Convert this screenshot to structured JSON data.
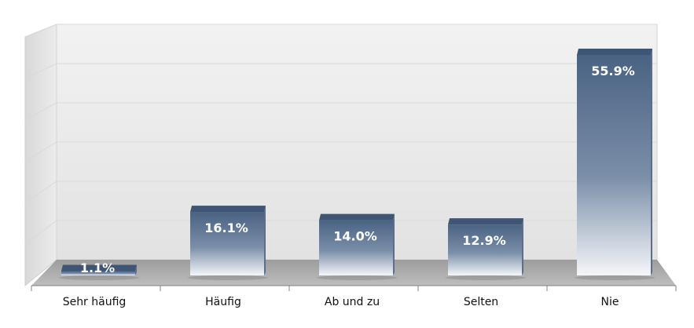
{
  "chart_data": {
    "type": "bar",
    "categories": [
      "Sehr häufig",
      "Häufig",
      "Ab und zu",
      "Selten",
      "Nie"
    ],
    "values": [
      1.1,
      16.1,
      14.0,
      12.9,
      55.9
    ],
    "data_labels": [
      "1.1%",
      "16.1%",
      "14.0%",
      "12.9%",
      "55.9%"
    ],
    "ylim": [
      0,
      60
    ],
    "grid": true,
    "three_d": true,
    "legend": "none",
    "colors": {
      "bar_top": "#4a6283",
      "bar_mid": "#7a8ea8",
      "bar_bottom": "#f4f6f9",
      "bar_cap": "#3e5575",
      "floor": "#aeaeae",
      "wall": "#eeeeee",
      "gridline": "#d9d9d9"
    }
  }
}
